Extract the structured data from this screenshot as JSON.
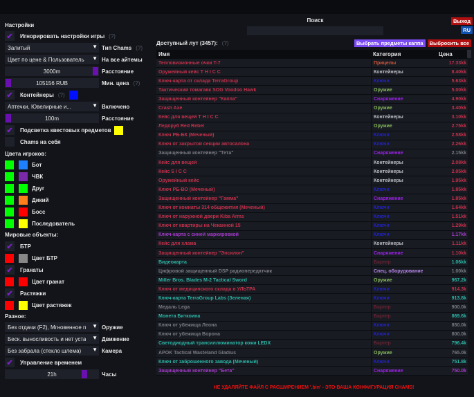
{
  "settings": {
    "title": "Настройки",
    "ignore_game": "Игнорировать настройки игры",
    "help": "(?)",
    "chams_type_value": "Залитый",
    "chams_type_label": "Тип Chams",
    "all_items_value": "Цвет по цене & Пользователь",
    "all_items_label": "На все айтемы",
    "distance_value": "3000m",
    "distance_label": "Расстояние",
    "min_price_value": "105156 RUB",
    "min_price_label": "Мин. цена",
    "containers": "Контейнеры",
    "containers_color": "#0010ff",
    "enabled_value": "Аптечки, Ювелирные и...",
    "enabled_label": "Включено",
    "cont_distance_value": "100m",
    "cont_distance_label": "Расстояние",
    "quest_highlight": "Подсветка квестовых предметов",
    "quest_color": "#ffff00",
    "chams_self": "Chams на себя",
    "player_colors_title": "Цвета игроков:",
    "players": [
      {
        "label": "Бот",
        "c1": "#00ff00",
        "c2": "#1e7fff"
      },
      {
        "label": "ЧВК",
        "c1": "#00ff00",
        "c2": "#7a2aa8"
      },
      {
        "label": "Друг",
        "c1": "#00ff00",
        "c2": "#00ff00"
      },
      {
        "label": "Дикий",
        "c1": "#00ff00",
        "c2": "#ff7f1a"
      },
      {
        "label": "Босс",
        "c1": "#00ff00",
        "c2": "#ff0000"
      },
      {
        "label": "Последователь",
        "c1": "#00ff00",
        "c2": "#ffff00"
      }
    ],
    "world_title": "Мировые объекты:",
    "btr": "БТР",
    "btr_color": "Цвет БТР",
    "grenades": "Гранаты",
    "grenades_color": "Цвет гранат",
    "tripwires": "Растяжки",
    "tripwires_color": "Цвет растяжек",
    "misc_title": "Разное:",
    "weapon_value": "Без отдачи (F2), Мгновенное п",
    "weapon_label": "Оружие",
    "movement_value": "Беск. выносливость и нет уста",
    "movement_label": "Движение",
    "camera_value": "Без забрала (стекло шлема)",
    "camera_label": "Камера",
    "time_control": "Управление временем",
    "hours_value": "21h",
    "hours_label": "Часы"
  },
  "search": {
    "label": "Поиск",
    "value": ""
  },
  "header": {
    "exit": "Выход",
    "lang": "RU"
  },
  "loot": {
    "title": "Доступный лут (3457):",
    "help": "(?)",
    "select_kappa": "Выбрать предметы каппа",
    "drop_all": "Выбросить все",
    "columns": [
      "Имя",
      "Категория",
      "Цена"
    ],
    "rows": [
      [
        "Тепловизионные очки T-7",
        "Прицелы",
        "17.33kk",
        "red"
      ],
      [
        "Оружейный кейс T H I C C",
        "Контейнеры",
        "8.40kk",
        "red"
      ],
      [
        "Ключ-карта от склада TerraGroup",
        "Ключи",
        "5.63kk",
        "red"
      ],
      [
        "Тактический томагавк SOG Voodoo Hawk",
        "Оружие",
        "5.00kk",
        "red"
      ],
      [
        "Защищенный контейнер \"Каппа\"",
        "Снаряжение",
        "4.90kk",
        "red"
      ],
      [
        "Crash Axe",
        "Оружие",
        "3.40kk",
        "red"
      ],
      [
        "Кейс для вещей T H I C C",
        "Контейнеры",
        "3.10kk",
        "red"
      ],
      [
        "Ледоруб Red Rebel",
        "Оружие",
        "2.75kk",
        "red"
      ],
      [
        "Ключ РБ-БК (Меченый)",
        "Ключи",
        "2.58kk",
        "red"
      ],
      [
        "Ключ от закрытой секции автосалона",
        "Ключи",
        "2.26kk",
        "red"
      ],
      [
        "Защищенный контейнер \"Тета\"",
        "Снаряжение",
        "2.15kk",
        "gray"
      ],
      [
        "Кейс для вещей",
        "Контейнеры",
        "2.08kk",
        "red"
      ],
      [
        "Кейс S I C C",
        "Контейнеры",
        "2.05kk",
        "red"
      ],
      [
        "Оружейный кейс",
        "Контейнеры",
        "1.95kk",
        "red"
      ],
      [
        "Ключ РБ-ВО (Меченый)",
        "Ключи",
        "1.85kk",
        "red"
      ],
      [
        "Защищенный контейнер \"Гамма\"",
        "Снаряжение",
        "1.85kk",
        "red"
      ],
      [
        "Ключ от комнаты 314 общежития (Меченый)",
        "Ключи",
        "1.64kk",
        "red"
      ],
      [
        "Ключ от наружной двери Kiba Arms",
        "Ключи",
        "1.51kk",
        "red"
      ],
      [
        "Ключ от квартиры на Чеканной 15",
        "Ключи",
        "1.29kk",
        "red"
      ],
      [
        "Ключ-карта с синей маркировкой",
        "Ключи",
        "1.17kk",
        "purple"
      ],
      [
        "Кейс для хлама",
        "Контейнеры",
        "1.11kk",
        "red"
      ],
      [
        "Защищенный контейнер \"Эпсилон\"",
        "Снаряжение",
        "1.10kk",
        "red"
      ],
      [
        "Видеокарта",
        "Бартер",
        "1.06kk",
        "cyan"
      ],
      [
        "Цифровой защищенный DSP радиопередатчик",
        "Спец. оборудование",
        "1.00kk",
        "gray"
      ],
      [
        "Miller Bros. Blades M-2 Tactical Sword",
        "Оружие",
        "967.2k",
        "cyan"
      ],
      [
        "Ключ от медицинского склада в УЛЬТРА",
        "Ключи",
        "914.3k",
        "red"
      ],
      [
        "Ключ-карта TerraGroup Labs (Зеленая)",
        "Ключи",
        "913.8k",
        "cyan"
      ],
      [
        "Медаль Lega",
        "Бартер",
        "900.0k",
        "gray"
      ],
      [
        "Монета Биткоина",
        "Бартер",
        "869.6k",
        "cyan"
      ],
      [
        "Ключ от убежища Леона",
        "Ключи",
        "850.0k",
        "gray"
      ],
      [
        "Ключ от убежища Ворона",
        "Ключи",
        "800.0k",
        "gray"
      ],
      [
        "Светодиодный трансиллюминатор кожи LEDX",
        "Бартер",
        "796.4k",
        "cyan"
      ],
      [
        "APOK Tactical Wasteland Gladius",
        "Оружие",
        "765.0k",
        "gray"
      ],
      [
        "Ключ от заброшенного завода (Меченый)",
        "Ключи",
        "751.8k",
        "cyan"
      ],
      [
        "Защищенный контейнер \"Бета\"",
        "Снаряжение",
        "750.0k",
        "purple"
      ]
    ]
  },
  "colors": {
    "red": "#c3304a",
    "gray": "#7a7a80",
    "cyan": "#2bb5a5",
    "purple": "#a33ac8",
    "categories": {
      "Прицелы": "#d0553a",
      "Контейнеры": "#bdbdc4",
      "Ключи": "#2222c8",
      "Оружие": "#86b85c",
      "Снаряжение": "#9b22e6",
      "Бартер": "#6a2233",
      "Спец. оборудование": "#b585e8"
    }
  },
  "footer": {
    "warning": "НЕ УДАЛЯЙТЕ ФАЙЛ С РАСШИРЕНИЕМ '.bin' - ЭТО ВАША КОНФИГУРАЦИЯ CHAMS!"
  }
}
